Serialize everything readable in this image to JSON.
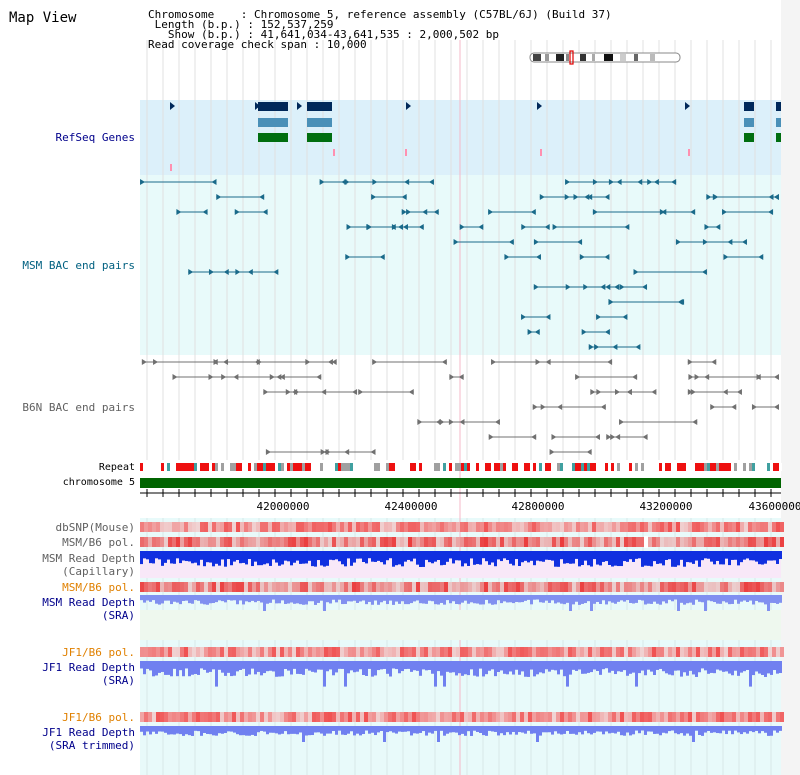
{
  "title": "Map View",
  "info": {
    "chromosome_label": "Chromosome",
    "chromosome_value": "Chromosome 5, reference assembly (C57BL/6J) (Build 37)",
    "length_label": "Length (b.p.)",
    "length_value": "152,537,259",
    "show_label": "Show (b.p.)",
    "show_value": "41,641,034-43,641,535 : 2,000,502 bp",
    "coverage_label": "Read coverage check span",
    "coverage_value": "10,000"
  },
  "tracks": {
    "refseq": "RefSeq Genes",
    "msm_bac": "MSM BAC end pairs",
    "b6n_bac": "B6N BAC end pairs",
    "repeat": "Repeat",
    "chromosome": "chromosome 5",
    "dbsnp": "dbSNP(Mouse)",
    "msm_b6_pol_1": "MSM/B6 pol.",
    "msm_read_depth_cap_1": "MSM Read Depth",
    "msm_read_depth_cap_2": "(Capillary)",
    "msm_b6_pol_2": "MSM/B6 pol.",
    "msm_read_depth_sra_1": "MSM Read Depth",
    "msm_read_depth_sra_2": "(SRA)",
    "jf1_b6_pol_1": "JF1/B6 pol.",
    "jf1_read_depth_sra_1": "JF1 Read Depth",
    "jf1_read_depth_sra_2": "(SRA)",
    "jf1_b6_pol_2": "JF1/B6 pol.",
    "jf1_read_depth_trim_1": "JF1 Read Depth",
    "jf1_read_depth_trim_2": "(SRA trimmed)"
  },
  "axis_ticks": [
    "42000000",
    "42400000",
    "42800000",
    "43200000",
    "43600000"
  ],
  "colors": {
    "refseq_bg": "#dcf0fa",
    "msm_bg": "#e8fafa",
    "track_bg": "#e8fafa",
    "chrom_green": "#006400",
    "gene_navy": "#00285a",
    "gene_teal": "#4a90b8",
    "gene_green": "#006e10"
  }
}
